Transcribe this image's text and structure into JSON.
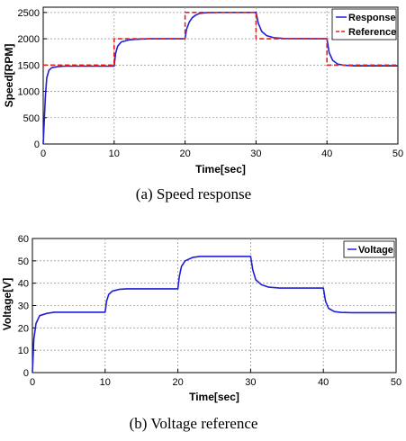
{
  "chart_data": [
    {
      "type": "line",
      "caption": "(a)  Speed  response",
      "xlabel": "Time[sec]",
      "ylabel": "Speed[RPM]",
      "xlim": [
        0,
        50
      ],
      "ylim": [
        0,
        2600
      ],
      "xticks": [
        0,
        10,
        20,
        30,
        40,
        50
      ],
      "yticks": [
        0,
        500,
        1000,
        1500,
        2000,
        2500
      ],
      "grid": true,
      "legend_position": "top-right",
      "series": [
        {
          "name": "Response",
          "color": "#1f1fd6",
          "style": "solid",
          "x": [
            0,
            0.3,
            0.5,
            0.8,
            1.2,
            2,
            3,
            5,
            10,
            10.2,
            10.5,
            11,
            12,
            13,
            15,
            20,
            20.2,
            20.6,
            21,
            21.5,
            22,
            23,
            25,
            30,
            30.3,
            30.8,
            31.5,
            32.5,
            34,
            40,
            40.3,
            40.8,
            41.5,
            42.5,
            44,
            50
          ],
          "y": [
            0,
            900,
            1250,
            1400,
            1450,
            1470,
            1480,
            1480,
            1480,
            1720,
            1860,
            1940,
            1975,
            1990,
            2000,
            2000,
            2180,
            2320,
            2400,
            2450,
            2480,
            2495,
            2500,
            2500,
            2300,
            2140,
            2060,
            2020,
            2005,
            2000,
            1740,
            1590,
            1520,
            1495,
            1485,
            1485
          ]
        },
        {
          "name": "Reference",
          "color": "#e8221b",
          "style": "dashed",
          "x": [
            0,
            10,
            10,
            20,
            20,
            30,
            30,
            40,
            40,
            50
          ],
          "y": [
            1500,
            1500,
            2000,
            2000,
            2500,
            2500,
            2000,
            2000,
            1500,
            1500
          ]
        }
      ]
    },
    {
      "type": "line",
      "caption": "(b)  Voltage  reference",
      "xlabel": "Time[sec]",
      "ylabel": "Voltage[V]",
      "xlim": [
        0,
        50
      ],
      "ylim": [
        0,
        60
      ],
      "xticks": [
        0,
        10,
        20,
        30,
        40,
        50
      ],
      "yticks": [
        0,
        10,
        20,
        30,
        40,
        50,
        60
      ],
      "grid": true,
      "legend_position": "top-right",
      "series": [
        {
          "name": "Voltage",
          "color": "#1f1fd6",
          "style": "solid",
          "x": [
            0,
            0.2,
            0.5,
            1,
            2,
            3,
            10,
            10.2,
            10.5,
            11,
            12,
            13,
            20,
            20.2,
            20.5,
            21,
            22,
            23,
            30,
            30.3,
            30.7,
            31.5,
            32.5,
            34,
            40,
            40.3,
            40.7,
            41.5,
            42.5,
            44,
            50
          ],
          "y": [
            0,
            15,
            22,
            25.5,
            26.5,
            27,
            27,
            32,
            35,
            36.5,
            37.3,
            37.5,
            37.5,
            43,
            47.5,
            50,
            51.5,
            52,
            52,
            46,
            41.5,
            39.3,
            38.2,
            37.8,
            37.8,
            32,
            28.8,
            27.3,
            26.9,
            26.8,
            26.8
          ]
        }
      ]
    }
  ]
}
